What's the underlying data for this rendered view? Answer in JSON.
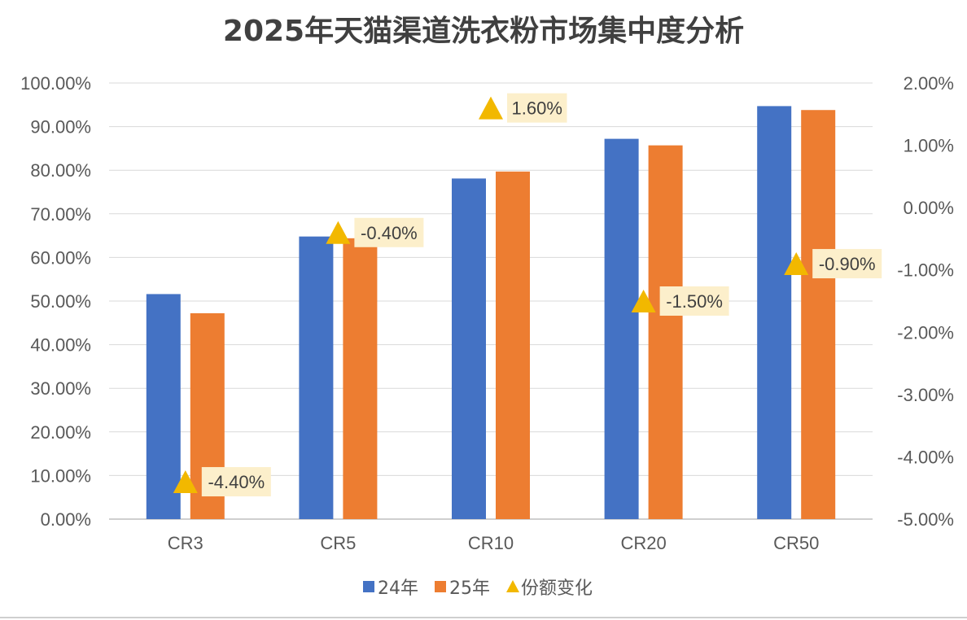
{
  "chart_data": {
    "type": "bar",
    "title": "2025年天猫渠道洗衣粉市场集中度分析",
    "categories": [
      "CR3",
      "CR5",
      "CR10",
      "CR20",
      "CR50"
    ],
    "series": [
      {
        "name": "24年",
        "type": "bar",
        "axis": "left",
        "values": [
          51.6,
          64.8,
          78.1,
          87.2,
          94.7
        ]
      },
      {
        "name": "25年",
        "type": "bar",
        "axis": "left",
        "values": [
          47.2,
          64.4,
          79.7,
          85.7,
          93.8
        ]
      },
      {
        "name": "份额变化",
        "type": "marker",
        "axis": "right",
        "values": [
          -4.4,
          -0.4,
          1.6,
          -1.5,
          -0.9
        ],
        "labels": [
          "-4.40%",
          "-0.40%",
          "1.60%",
          "-1.50%",
          "-0.90%"
        ]
      }
    ],
    "y_left": {
      "min": 0,
      "max": 100,
      "step": 10,
      "tick_labels": [
        "0.00%",
        "10.00%",
        "20.00%",
        "30.00%",
        "40.00%",
        "50.00%",
        "60.00%",
        "70.00%",
        "80.00%",
        "90.00%",
        "100.00%"
      ]
    },
    "y_right": {
      "min": -5,
      "max": 2,
      "step": 1,
      "tick_labels": [
        "-5.00%",
        "-4.00%",
        "-3.00%",
        "-2.00%",
        "-1.00%",
        "0.00%",
        "1.00%",
        "2.00%"
      ]
    },
    "colors": {
      "24年": "#4472C4",
      "25年": "#ED7D31",
      "份额变化": "#F2B800",
      "label_bg": "#FCEFCB",
      "grid": "#D9D9D9",
      "axis": "#BFBFBF"
    },
    "grid": true,
    "legend": "bottom"
  }
}
